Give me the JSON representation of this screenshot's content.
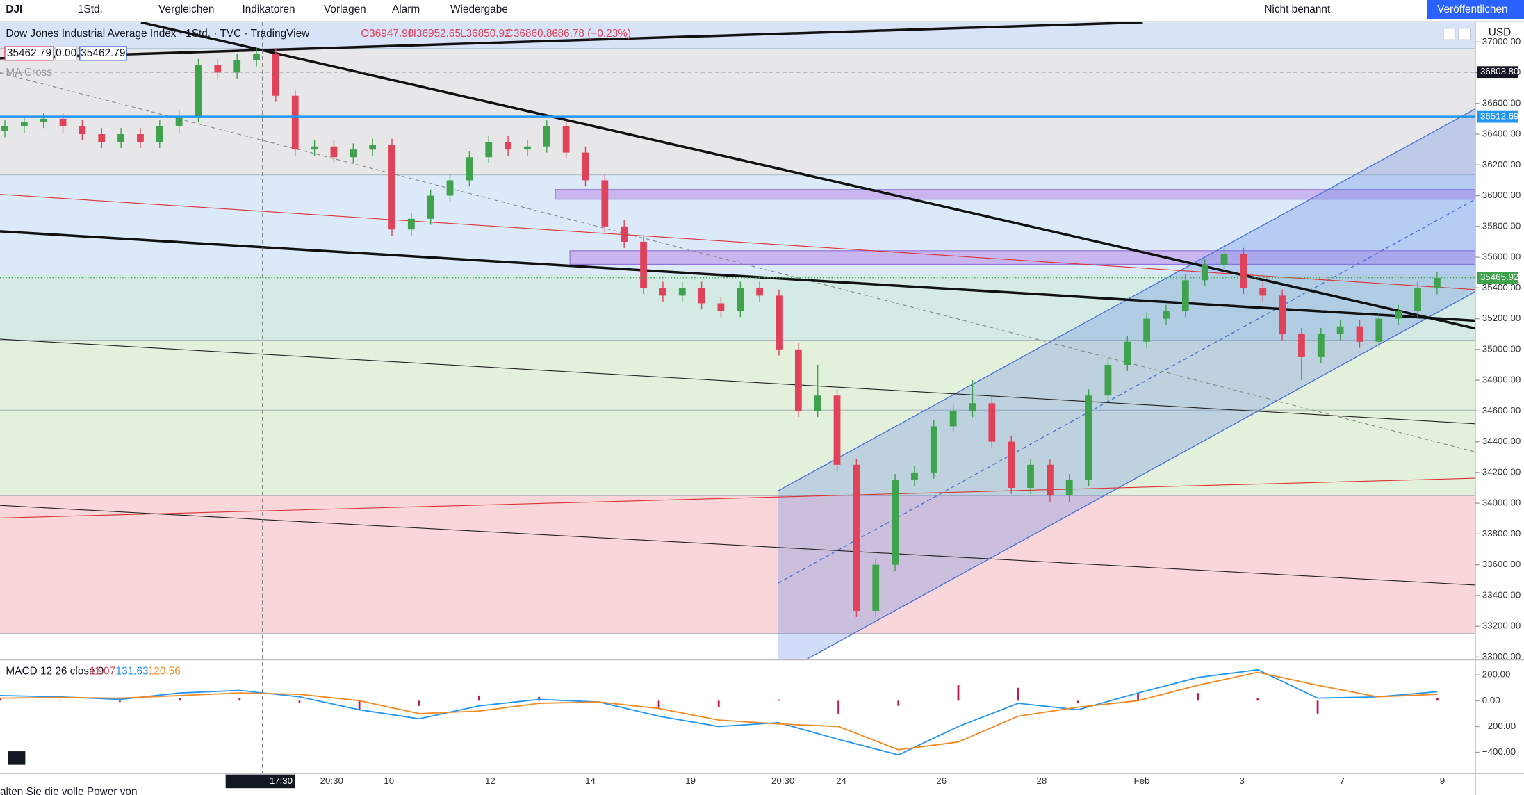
{
  "toolbar": {
    "symbol": "DJI",
    "interval": "1Std.",
    "items": [
      "Vergleichen",
      "Indikatoren",
      "Vorlagen",
      "Alarm",
      "Wiedergabe"
    ],
    "layout_name": "Nicht benannt",
    "publish": "Veröffentlichen"
  },
  "legend": {
    "title": "Dow Jones Industrial Average Index · 1Std. · TVC · TradingView",
    "ohlc": [
      "O36947.90",
      "H36952.65",
      "L36850.92",
      "C36860.86",
      "−86.78 (−0.23%)"
    ],
    "bid": "35462.79",
    "spread": "0.00",
    "ask": "35462.79",
    "indicator": "MA Cross"
  },
  "currency": "USD",
  "banner": "alten Sie die volle Power von",
  "chart_data": [
    {
      "type": "candlestick",
      "up_color": "#3fa34d",
      "down_color": "#e0425a",
      "open": [
        36420,
        36450,
        36480,
        36500,
        36450,
        36400,
        36350,
        36400,
        36350,
        36450,
        36520,
        36850,
        36800,
        36880,
        36920,
        36650,
        36300,
        36320,
        36250,
        36300,
        36330,
        35780,
        35850,
        36000,
        36100,
        36250,
        36350,
        36300,
        36320,
        36450,
        36280,
        36100,
        35800,
        35700,
        35400,
        35350,
        35400,
        35300,
        35250,
        35400,
        35350,
        35000,
        34600,
        34700,
        34250,
        33300,
        33600,
        34150,
        34200,
        34500,
        34600,
        34650,
        34400,
        34100,
        34250,
        34050,
        34150,
        34700,
        34900,
        35050,
        35200,
        35250,
        35450,
        35550,
        35620,
        35400,
        35350,
        35100,
        34950,
        35100,
        35150,
        35050,
        35200,
        35250,
        35400
      ],
      "high": [
        36490,
        36520,
        36540,
        36540,
        36490,
        36440,
        36440,
        36440,
        36490,
        36560,
        36890,
        36890,
        36920,
        36960,
        36960,
        36690,
        36360,
        36360,
        36340,
        36370,
        36370,
        35890,
        36040,
        36140,
        36290,
        36390,
        36390,
        36360,
        36490,
        36490,
        36320,
        36140,
        35840,
        35740,
        35440,
        35440,
        35440,
        35340,
        35440,
        35440,
        35390,
        35040,
        34900,
        34740,
        34290,
        33640,
        34190,
        34240,
        34540,
        34640,
        34800,
        34690,
        34440,
        34290,
        34290,
        34190,
        34740,
        34940,
        35090,
        35240,
        35290,
        35490,
        35590,
        35660,
        35660,
        35440,
        35390,
        35140,
        35140,
        35190,
        35190,
        35240,
        35290,
        35440,
        35505
      ],
      "low": [
        36380,
        36410,
        36440,
        36410,
        36360,
        36310,
        36310,
        36310,
        36310,
        36410,
        36480,
        36760,
        36760,
        36840,
        36610,
        36260,
        36260,
        36210,
        36210,
        36260,
        35740,
        35740,
        35810,
        35960,
        36060,
        36210,
        36260,
        36260,
        36280,
        36240,
        36060,
        35760,
        35660,
        35360,
        35310,
        35310,
        35260,
        35210,
        35210,
        35310,
        34960,
        34560,
        34560,
        34210,
        33260,
        33260,
        33560,
        34110,
        34160,
        34460,
        34560,
        34360,
        34060,
        34060,
        34010,
        34010,
        34110,
        34660,
        34860,
        35010,
        35160,
        35210,
        35410,
        35510,
        35360,
        35310,
        35060,
        34800,
        34910,
        35060,
        35010,
        35010,
        35160,
        35210,
        35360
      ],
      "close": [
        36450,
        36480,
        36500,
        36450,
        36400,
        36350,
        36400,
        36350,
        36450,
        36520,
        36850,
        36800,
        36880,
        36920,
        36650,
        36300,
        36320,
        36250,
        36300,
        36330,
        35780,
        35850,
        36000,
        36100,
        36250,
        36350,
        36300,
        36320,
        36450,
        36280,
        36100,
        35800,
        35700,
        35400,
        35350,
        35400,
        35300,
        35250,
        35400,
        35350,
        35000,
        34600,
        34700,
        34250,
        33300,
        33600,
        34150,
        34200,
        34500,
        34600,
        34650,
        34400,
        34100,
        34250,
        34050,
        34150,
        34700,
        34900,
        35050,
        35200,
        35250,
        35450,
        35550,
        35620,
        35400,
        35350,
        35100,
        34950,
        35100,
        35150,
        35050,
        35200,
        35250,
        35400,
        35465
      ],
      "ylim": [
        32981,
        37127
      ],
      "yticks": [
        {
          "value": 33000,
          "label": "33000.00"
        },
        {
          "value": 33200,
          "label": "33200.00"
        },
        {
          "value": 33400,
          "label": "33400.00"
        },
        {
          "value": 33600,
          "label": "33600.00"
        },
        {
          "value": 33800,
          "label": "33800.00"
        },
        {
          "value": 34000,
          "label": "34000.00"
        },
        {
          "value": 34200,
          "label": "34200.00"
        },
        {
          "value": 34400,
          "label": "34400.00"
        },
        {
          "value": 34600,
          "label": "34600.00"
        },
        {
          "value": 34800,
          "label": "34800.00"
        },
        {
          "value": 35000,
          "label": "35000.00"
        },
        {
          "value": 35200,
          "label": "35200.00"
        },
        {
          "value": 35400,
          "label": "35400.00"
        },
        {
          "value": 35600,
          "label": "35600.00"
        },
        {
          "value": 35800,
          "label": "35800.00"
        },
        {
          "value": 36000,
          "label": "36000.00"
        },
        {
          "value": 36200,
          "label": "36200.00"
        },
        {
          "value": 36400,
          "label": "36400.00"
        },
        {
          "value": 36600,
          "label": "36600.00"
        },
        {
          "value": 36800,
          "label": "36800.00"
        },
        {
          "value": 37000,
          "label": "37000.00"
        }
      ],
      "xtick_labels": [
        "20:30",
        "10",
        "12",
        "14",
        "19",
        "20:30",
        "24",
        "26",
        "28",
        "Feb",
        "3",
        "7",
        "9"
      ],
      "price_lines": [
        {
          "value": 36512.69,
          "color": "#2196f3"
        }
      ],
      "current_price": 35465.92,
      "crosshair": {
        "price": {
          "value": 36803.8,
          "label": "36803.80"
        },
        "time": "17:30"
      }
    },
    {
      "type": "macd",
      "title": "MACD 12 26 close 9",
      "readouts": [
        11.07,
        131.63,
        120.56
      ],
      "readout_colors": [
        "#e0425a",
        "#2196f3",
        "#f08a24"
      ],
      "series": [
        {
          "name": "Histogram",
          "color": "#c2185b",
          "values": [
            20,
            5,
            -10,
            20,
            20,
            -20,
            -70,
            -40,
            40,
            30,
            0,
            -60,
            -50,
            10,
            -100,
            -40,
            120,
            100,
            -20,
            60,
            60,
            20,
            -100,
            0,
            20
          ]
        },
        {
          "name": "MACD",
          "color": "#2196f3",
          "values": [
            40,
            30,
            10,
            60,
            80,
            30,
            -70,
            -140,
            -40,
            10,
            -10,
            -120,
            -200,
            -170,
            -300,
            -420,
            -200,
            -20,
            -70,
            60,
            180,
            240,
            20,
            30,
            70
          ]
        },
        {
          "name": "Signal",
          "color": "#f08a24",
          "values": [
            20,
            25,
            20,
            40,
            60,
            50,
            0,
            -100,
            -80,
            -20,
            -10,
            -60,
            -150,
            -180,
            -200,
            -380,
            -320,
            -120,
            -50,
            0,
            120,
            220,
            120,
            30,
            50
          ]
        }
      ],
      "ylim": [
        -558,
        309
      ],
      "yticks": [
        {
          "value": 200,
          "label": "200.00"
        },
        {
          "value": 0,
          "label": "0.00"
        },
        {
          "value": -200,
          "label": "−200.00"
        },
        {
          "value": -400,
          "label": "−400.00"
        }
      ]
    }
  ]
}
